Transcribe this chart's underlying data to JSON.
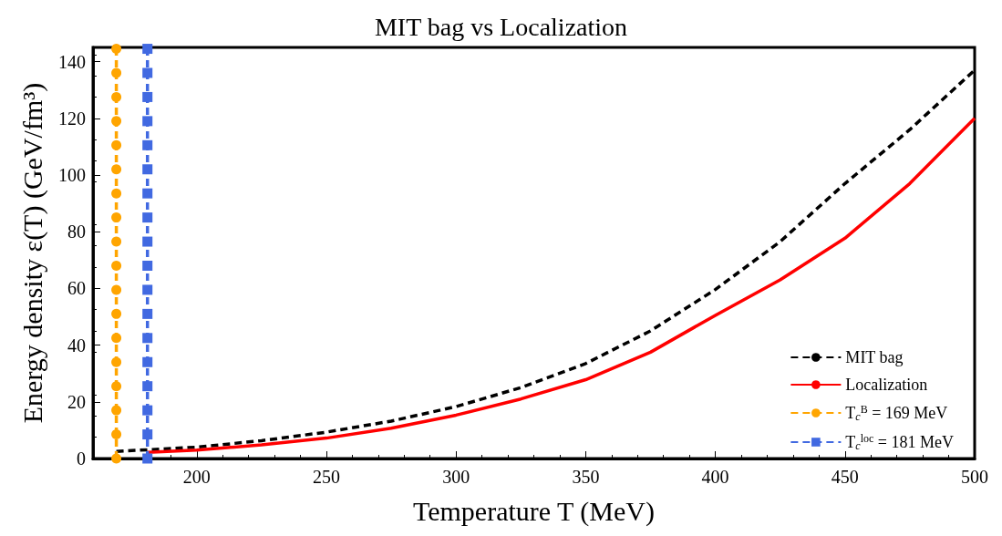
{
  "chart_data": {
    "type": "line",
    "title": "MIT bag vs Localization",
    "xlabel": "Temperature T (MeV)",
    "ylabel": "Energy density ε(T) (GeV/fm³)",
    "xlim": [
      160,
      500
    ],
    "xticks": [
      200,
      250,
      300,
      350,
      400,
      450,
      500
    ],
    "ylim": [
      0,
      145
    ],
    "yticks": [
      0,
      20,
      40,
      60,
      80,
      100,
      120,
      140
    ],
    "grid": false,
    "legend": "bottom right",
    "series": [
      {
        "name": "MIT bag",
        "color": "#000000",
        "line_style": "dashed",
        "marker": "none",
        "x": [
          169,
          200,
          225,
          250,
          275,
          300,
          325,
          350,
          375,
          400,
          425,
          450,
          475,
          500
        ],
        "values": [
          2.5,
          4,
          6.3,
          9.3,
          13.2,
          18.3,
          25,
          33.5,
          45,
          59.6,
          76.5,
          97,
          116,
          137
        ]
      },
      {
        "name": "Localization",
        "color": "#ff0000",
        "line_style": "solid",
        "marker": "none",
        "x": [
          181,
          200,
          225,
          250,
          275,
          300,
          325,
          350,
          375,
          400,
          425,
          450,
          475,
          500
        ],
        "values": [
          2.2,
          3,
          4.8,
          7.2,
          10.7,
          15.3,
          21,
          27.8,
          37.5,
          50.5,
          63,
          77.7,
          97,
          120
        ]
      },
      {
        "name": "T$_{c}$$^{B}$ = 169 MeV",
        "color": "#ffa500",
        "line_style": "dashed",
        "marker": "circle",
        "x": [
          169,
          169,
          169,
          169,
          169,
          169,
          169,
          169,
          169,
          169,
          169,
          169,
          169,
          169,
          169,
          169,
          169,
          169
        ],
        "values": [
          0,
          8.5,
          17,
          25.5,
          34,
          42.5,
          51,
          59.5,
          68,
          76.5,
          85,
          93.5,
          102,
          110.5,
          119,
          127.5,
          136,
          144.5
        ]
      },
      {
        "name": "T$_{c}$$^{loc}$ = 181 MeV",
        "color": "#4169e1",
        "line_style": "dashed",
        "marker": "square",
        "x": [
          181,
          181,
          181,
          181,
          181,
          181,
          181,
          181,
          181,
          181,
          181,
          181,
          181,
          181,
          181,
          181,
          181,
          181
        ],
        "values": [
          0,
          8.5,
          17,
          25.5,
          34,
          42.5,
          51,
          59.5,
          68,
          76.5,
          85,
          93.5,
          102,
          110.5,
          119,
          127.5,
          136,
          144.5
        ]
      }
    ]
  }
}
